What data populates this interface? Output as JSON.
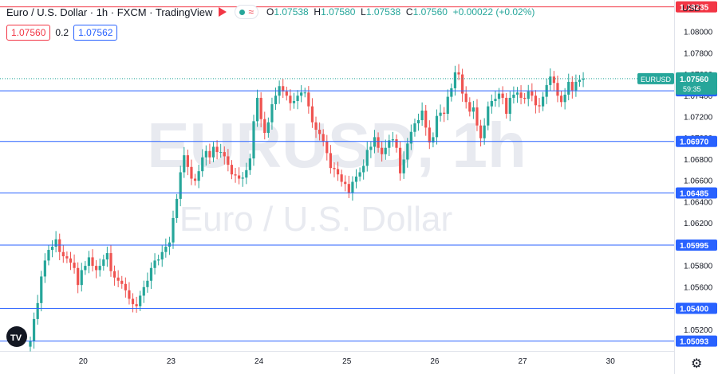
{
  "header": {
    "title": "Euro / U.S. Dollar · 1h · FXCM · TradingView",
    "ohlc": {
      "o_label": "O",
      "o": "1.07538",
      "h_label": "H",
      "h": "1.07580",
      "l_label": "L",
      "l": "1.07538",
      "c_label": "C",
      "c": "1.07560",
      "change": "+0.00022 (+0.02%)"
    },
    "sell_price": "1.07560",
    "spread": "0.2",
    "buy_price": "1.07562",
    "currency": "USD"
  },
  "watermark": {
    "symbol": "EURUSD, 1h",
    "name": "Euro / U.S. Dollar"
  },
  "chart_data": {
    "type": "candlestick",
    "y_axis": {
      "min": 1.05,
      "max": 1.083,
      "ticks": [
        "1.05200",
        "1.05400",
        "1.05600",
        "1.05800",
        "1.06000",
        "1.06200",
        "1.06400",
        "1.06600",
        "1.06800",
        "1.07000",
        "1.07200",
        "1.07400",
        "1.07600",
        "1.07800",
        "1.08000"
      ]
    },
    "x_ticks": [
      {
        "label": "20",
        "index": 14
      },
      {
        "label": "23",
        "index": 38
      },
      {
        "label": "24",
        "index": 62
      },
      {
        "label": "25",
        "index": 86
      },
      {
        "label": "26",
        "index": 110
      },
      {
        "label": "27",
        "index": 134
      },
      {
        "label": "30",
        "index": 158
      }
    ],
    "horizontal_levels": [
      {
        "value": 1.08235,
        "label": "1.08235",
        "color": "#f23645"
      },
      {
        "value": 1.07446,
        "label": "1.07446",
        "color": "#2962ff"
      },
      {
        "value": 1.0697,
        "label": "1.06970",
        "color": "#2962ff"
      },
      {
        "value": 1.06485,
        "label": "1.06485",
        "color": "#2962ff"
      },
      {
        "value": 1.05995,
        "label": "1.05995",
        "color": "#2962ff"
      },
      {
        "value": 1.054,
        "label": "1.05400",
        "color": "#2962ff"
      },
      {
        "value": 1.05093,
        "label": "1.05093",
        "color": "#2962ff"
      }
    ],
    "last_price": {
      "symbol": "EURUSD",
      "value": 1.0756,
      "label": "1.07560",
      "countdown": "59:35",
      "color": "#26a69a"
    },
    "closes": [
      1.0509,
      1.053,
      1.0545,
      1.057,
      1.0585,
      1.0595,
      1.0598,
      1.0605,
      1.0593,
      1.0589,
      1.0587,
      1.0583,
      1.0578,
      1.0562,
      1.0576,
      1.058,
      1.0588,
      1.058,
      1.0576,
      1.058,
      1.0586,
      1.0592,
      1.0575,
      1.0569,
      1.0566,
      1.0563,
      1.0557,
      1.0549,
      1.0544,
      1.0542,
      1.0552,
      1.056,
      1.0566,
      1.0578,
      1.0585,
      1.0586,
      1.0593,
      1.0598,
      1.0602,
      1.0625,
      1.0643,
      1.0668,
      1.0684,
      1.0673,
      1.0662,
      1.066,
      1.0669,
      1.0682,
      1.0688,
      1.0682,
      1.0692,
      1.0687,
      1.0687,
      1.0683,
      1.0675,
      1.0666,
      1.0665,
      1.0662,
      1.0663,
      1.067,
      1.0681,
      1.0716,
      1.0738,
      1.0718,
      1.0705,
      1.0715,
      1.0732,
      1.074,
      1.0749,
      1.0744,
      1.074,
      1.0733,
      1.0735,
      1.074,
      1.0743,
      1.0743,
      1.073,
      1.0715,
      1.0708,
      1.0704,
      1.0697,
      1.0686,
      1.0672,
      1.0671,
      1.0666,
      1.0659,
      1.0657,
      1.0649,
      1.0659,
      1.0664,
      1.0668,
      1.0674,
      1.0689,
      1.0692,
      1.0701,
      1.0691,
      1.0685,
      1.0691,
      1.0698,
      1.0699,
      1.0691,
      1.0667,
      1.068,
      1.0695,
      1.0706,
      1.0714,
      1.0717,
      1.0726,
      1.071,
      1.0696,
      1.0701,
      1.0721,
      1.0724,
      1.0723,
      1.0739,
      1.0747,
      1.0762,
      1.076,
      1.0742,
      1.0734,
      1.0725,
      1.0729,
      1.0712,
      1.07,
      1.0712,
      1.073,
      1.0735,
      1.0737,
      1.0742,
      1.0738,
      1.0723,
      1.0738,
      1.0741,
      1.0743,
      1.0738,
      1.0737,
      1.0744,
      1.074,
      1.0731,
      1.073,
      1.0739,
      1.075,
      1.0758,
      1.0752,
      1.074,
      1.0734,
      1.0741,
      1.0753,
      1.0745,
      1.0753,
      1.0755,
      1.0756
    ]
  }
}
